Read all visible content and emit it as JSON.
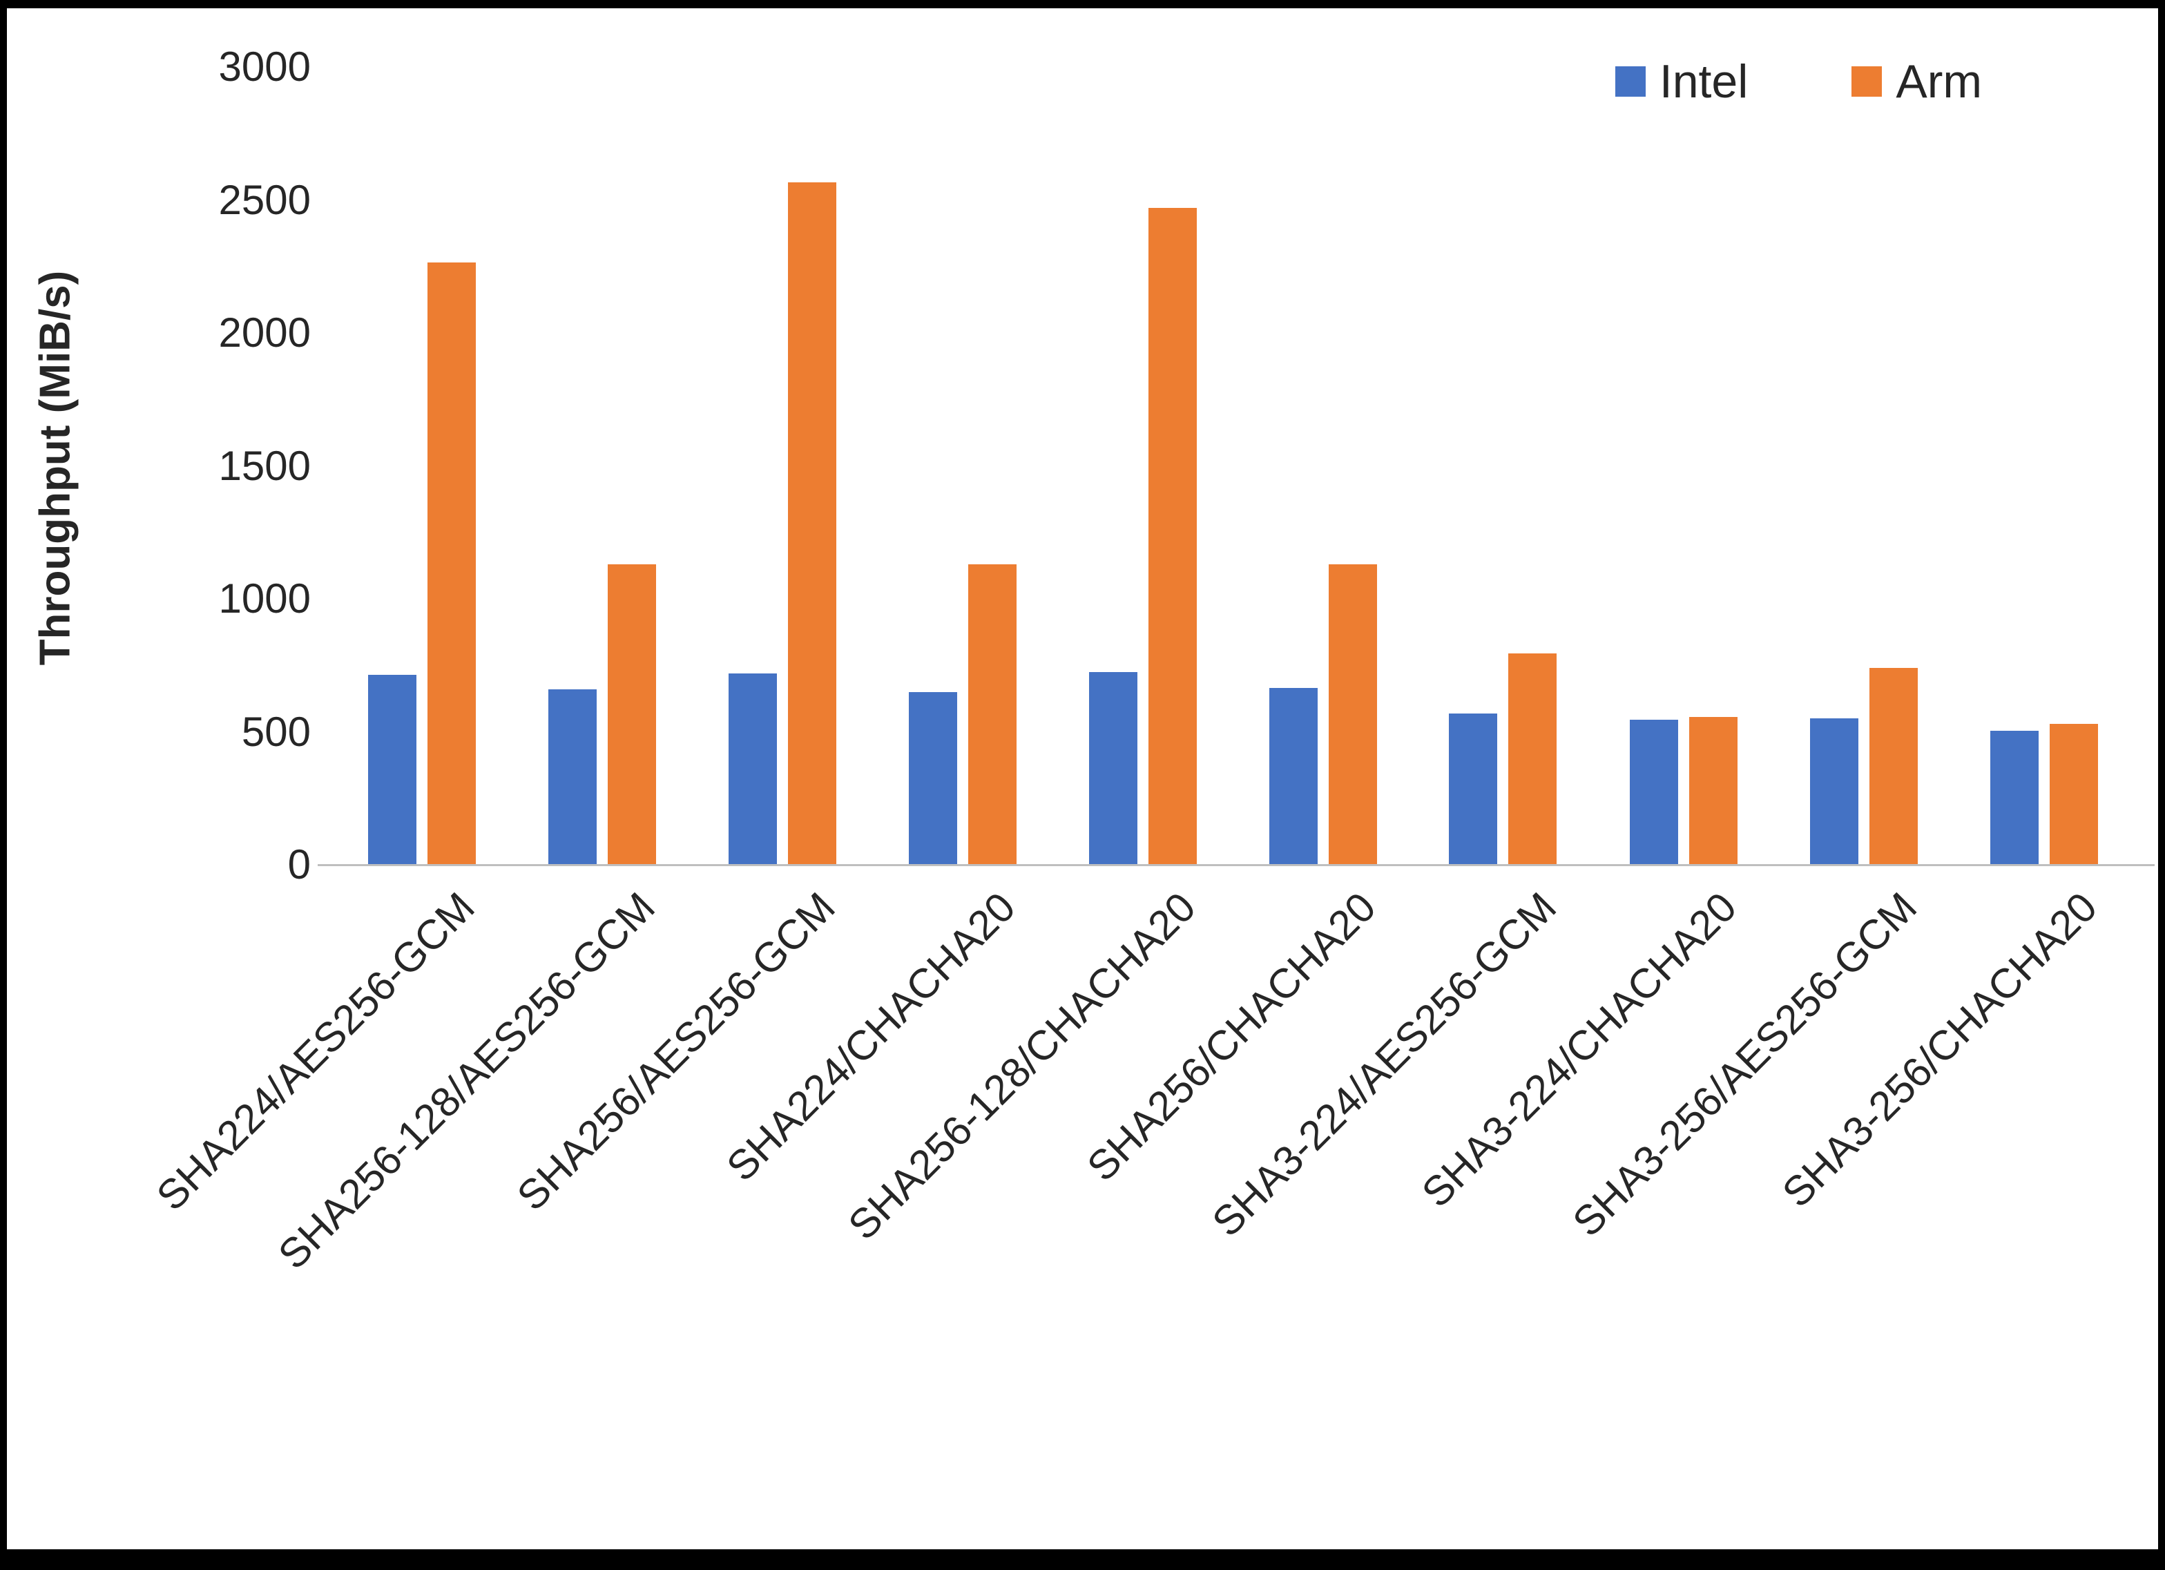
{
  "chart_data": {
    "type": "bar",
    "title": "",
    "xlabel": "",
    "ylabel": "Throughput (MiB/s)",
    "ylim": [
      0,
      3000
    ],
    "yticks": [
      0,
      500,
      1000,
      1500,
      2000,
      2500,
      3000
    ],
    "grid": false,
    "legend_position": "top-right",
    "categories": [
      "SHA224/AES256-GCM",
      "SHA256-128/AES256-GCM",
      "SHA256/AES256-GCM",
      "SHA224/CHACHA20",
      "SHA256-128/CHACHA20",
      "SHA256/CHACHA20",
      "SHA3-224/AES256-GCM",
      "SHA3-224/CHACHA20",
      "SHA3-256/AES256-GCM",
      "SHA3-256/CHACHA20"
    ],
    "series": [
      {
        "name": "Intel",
        "color": "#4472C4",
        "values": [
          715,
          660,
          720,
          650,
          725,
          665,
          570,
          545,
          550,
          505
        ]
      },
      {
        "name": "Arm",
        "color": "#ED7D31",
        "values": [
          2265,
          1130,
          2565,
          1130,
          2470,
          1130,
          795,
          555,
          740,
          530
        ]
      }
    ]
  }
}
